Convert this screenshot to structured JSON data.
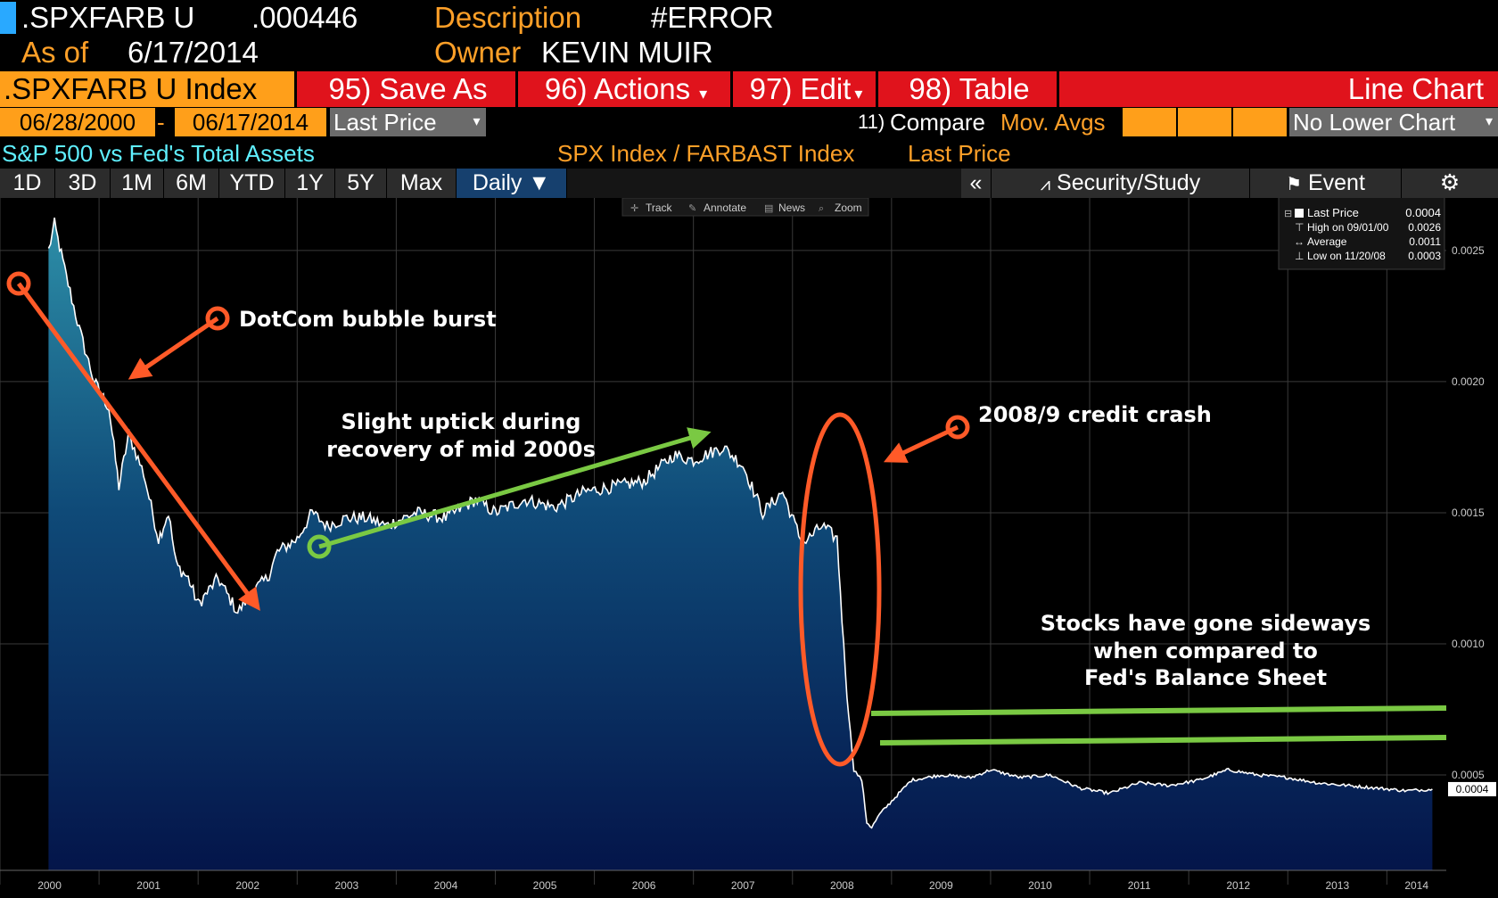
{
  "header": {
    "ticker": ".SPXFARB U",
    "price": ".000446",
    "description_label": "Description",
    "description_value": "#ERROR",
    "asof_label": "As of",
    "asof_value": "6/17/2014",
    "owner_label": "Owner",
    "owner_value": "KEVIN MUIR"
  },
  "menu": {
    "index_label": ".SPXFARB U Index",
    "save_as": "95) Save As",
    "actions": "96) Actions",
    "edit": "97) Edit",
    "table": "98) Table",
    "chart_type": "Line Chart"
  },
  "dates": {
    "start": "06/28/2000",
    "dash": "-",
    "end": "06/17/2014",
    "field": "Last Price",
    "compare_num": "11)",
    "compare": "Compare",
    "mov_avgs": "Mov. Avgs",
    "lower_chart": "No Lower Chart"
  },
  "titlebar": {
    "title": "S&P 500 vs Fed's Total Assets",
    "ratio": "SPX Index / FARBAST Index",
    "field": "Last Price"
  },
  "range_tabs": [
    "1D",
    "3D",
    "1M",
    "6M",
    "YTD",
    "1Y",
    "5Y",
    "Max"
  ],
  "frequency": "Daily",
  "right_tabs": {
    "collapse": "«",
    "security_study": "Security/Study",
    "event": "Event"
  },
  "toolbar": {
    "track": "Track",
    "annotate": "Annotate",
    "news": "News",
    "zoom": "Zoom"
  },
  "legend": {
    "last_label": "Last Price",
    "last_value": "0.0004",
    "high_label": "High on 09/01/00",
    "high_value": "0.0026",
    "avg_label": "Average",
    "avg_value": "0.0011",
    "low_label": "Low on 11/20/08",
    "low_value": "0.0003"
  },
  "annotations": {
    "dotcom": "DotCom bubble burst",
    "uptick_1": "Slight uptick during",
    "uptick_2": "recovery of mid 2000s",
    "crash": "2008/9 credit crash",
    "sideways_1": "Stocks have gone sideways",
    "sideways_2": "when compared to",
    "sideways_3": "Fed's Balance Sheet"
  },
  "colors": {
    "accent_orange": "#ff9f1a",
    "menu_red": "#e0131c",
    "annotation_red": "#ff5a28",
    "annotation_green": "#7ac943",
    "line": "#ffffff"
  },
  "chart_data": {
    "type": "area",
    "title": "S&P 500 vs Fed's Total Assets",
    "xlabel": "",
    "ylabel": "",
    "ylim": [
      0.00015,
      0.0027
    ],
    "yticks": [
      0.0005,
      0.001,
      0.0015,
      0.002,
      0.0025
    ],
    "ytick_labels": [
      "0.0005",
      "0.0010",
      "0.0015",
      "0.0020",
      "0.0025"
    ],
    "xticks": [
      2000,
      2001,
      2002,
      2003,
      2004,
      2005,
      2006,
      2007,
      2008,
      2009,
      2010,
      2011,
      2012,
      2013,
      2014
    ],
    "xtick_labels": [
      "2000",
      "2001",
      "2002",
      "2003",
      "2004",
      "2005",
      "2006",
      "2007",
      "2008",
      "2009",
      "2010",
      "2011",
      "2012",
      "2013",
      "2014"
    ],
    "last_value_label": "0.0004",
    "grid": true,
    "legend_position": "top-right",
    "series": [
      {
        "name": "Last Price",
        "x": [
          2000.49,
          2000.55,
          2000.67,
          2000.8,
          2000.95,
          2001.1,
          2001.2,
          2001.3,
          2001.45,
          2001.6,
          2001.7,
          2001.78,
          2001.9,
          2002.0,
          2002.2,
          2002.4,
          2002.55,
          2002.7,
          2002.8,
          2003.0,
          2003.15,
          2003.3,
          2003.5,
          2003.7,
          2003.9,
          2004.2,
          2004.5,
          2004.8,
          2005.0,
          2005.3,
          2005.6,
          2005.9,
          2006.2,
          2006.5,
          2006.8,
          2007.0,
          2007.3,
          2007.5,
          2007.7,
          2007.9,
          2008.1,
          2008.3,
          2008.45,
          2008.55,
          2008.62,
          2008.7,
          2008.75,
          2008.8,
          2008.88,
          2009.0,
          2009.2,
          2009.5,
          2009.8,
          2010.0,
          2010.3,
          2010.6,
          2010.9,
          2011.2,
          2011.5,
          2011.8,
          2012.1,
          2012.4,
          2012.7,
          2013.0,
          2013.3,
          2013.6,
          2013.9,
          2014.2,
          2014.46
        ],
        "y": [
          0.0025,
          0.0026,
          0.0024,
          0.0022,
          0.002,
          0.0019,
          0.0016,
          0.0018,
          0.00165,
          0.0014,
          0.0015,
          0.0013,
          0.00125,
          0.00115,
          0.00125,
          0.00112,
          0.0012,
          0.00125,
          0.00135,
          0.0014,
          0.0015,
          0.00145,
          0.00148,
          0.00148,
          0.00145,
          0.0015,
          0.00148,
          0.00155,
          0.0015,
          0.00155,
          0.00152,
          0.00158,
          0.0016,
          0.00162,
          0.00172,
          0.0017,
          0.00175,
          0.00168,
          0.0015,
          0.00158,
          0.00138,
          0.00145,
          0.0014,
          0.0008,
          0.00052,
          0.00048,
          0.00032,
          0.0003,
          0.00035,
          0.0004,
          0.00048,
          0.0005,
          0.00049,
          0.00052,
          0.00049,
          0.0005,
          0.00045,
          0.00043,
          0.00047,
          0.00046,
          0.00048,
          0.00052,
          0.0005,
          0.00049,
          0.00047,
          0.00046,
          0.00045,
          0.00044,
          0.000446
        ]
      }
    ]
  }
}
